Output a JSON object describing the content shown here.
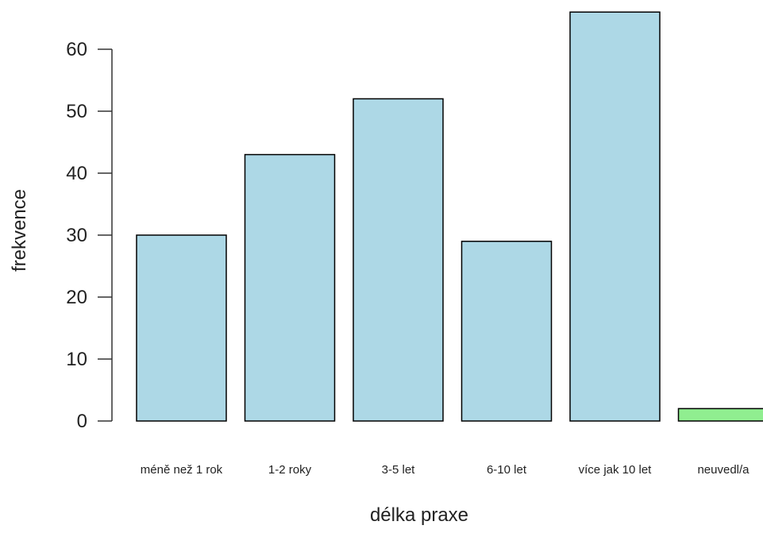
{
  "chart_data": {
    "type": "bar",
    "title": "",
    "xlabel": "délka praxe",
    "ylabel": "frekvence",
    "categories": [
      "méně než 1 rok",
      "1-2 roky",
      "3-5 let",
      "6-10 let",
      "více jak 10 let",
      "neuvedl/a"
    ],
    "values": [
      30,
      43,
      52,
      29,
      66,
      2
    ],
    "colors": [
      "#add8e6",
      "#add8e6",
      "#add8e6",
      "#add8e6",
      "#add8e6",
      "#90ee90"
    ],
    "yticks": [
      0,
      10,
      20,
      30,
      40,
      50,
      60
    ],
    "ylim": [
      0,
      66
    ],
    "grid": false
  }
}
